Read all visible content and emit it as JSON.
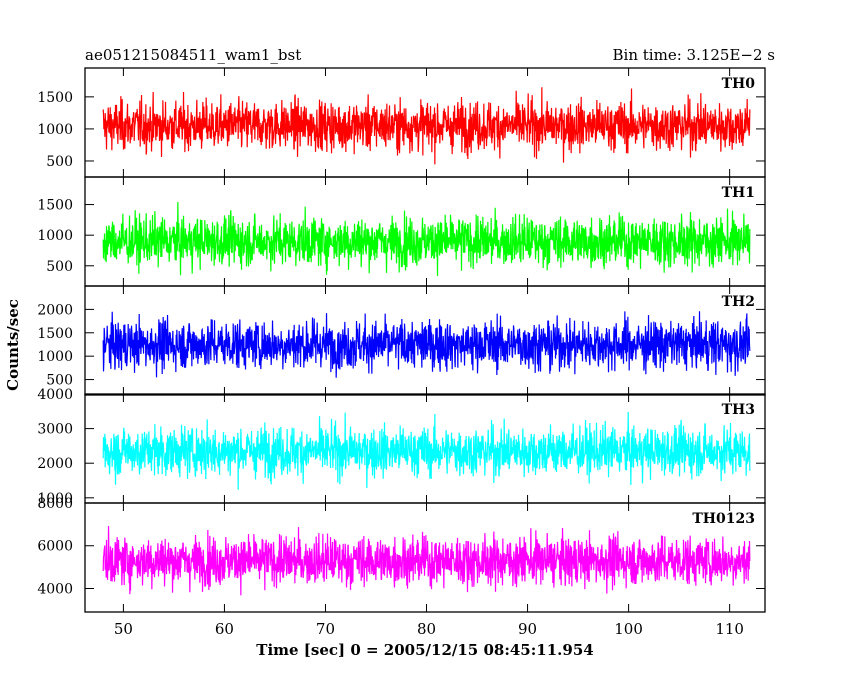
{
  "title_left": "ae051215084511_wam1_bst",
  "title_right": "Bin time: 3.125E−2 s",
  "chart_data": {
    "type": "line",
    "xlabel": "Time [sec] 0 = 2005/12/15 08:45:11.954",
    "ylabel": "Counts/sec",
    "xlim": [
      46.2,
      113.5
    ],
    "xticks": [
      50,
      60,
      70,
      80,
      90,
      100,
      110
    ],
    "xtick_labels": [
      "50",
      "60",
      "70",
      "80",
      "90",
      "100",
      "110"
    ],
    "x_range": [
      48.0,
      112.0
    ],
    "bin_time": 0.03125,
    "panels": [
      {
        "name": "TH0",
        "color": "#ff0000",
        "ylim": [
          250,
          1950
        ],
        "yticks": [
          500,
          1000,
          1500
        ],
        "ytick_labels": [
          "500",
          "1000",
          "1500"
        ],
        "data_min": 250,
        "data_max": 1950,
        "mean": 1050
      },
      {
        "name": "TH1",
        "color": "#00ff00",
        "ylim": [
          170,
          1950
        ],
        "yticks": [
          500,
          1000,
          1500
        ],
        "ytick_labels": [
          "500",
          "1000",
          "1500"
        ],
        "data_min": 170,
        "data_max": 1950,
        "mean": 900
      },
      {
        "name": "TH2",
        "color": "#0000ff",
        "ylim": [
          170,
          2500
        ],
        "yticks": [
          500,
          1000,
          1500,
          2000
        ],
        "ytick_labels": [
          "500",
          "1000",
          "1500",
          "2000"
        ],
        "data_min": 170,
        "data_max": 2500,
        "mean": 1250
      },
      {
        "name": "TH3",
        "color": "#00ffff",
        "ylim": [
          850,
          4000
        ],
        "yticks": [
          1000,
          2000,
          3000,
          4000
        ],
        "ytick_labels": [
          "1000",
          "2000",
          "3000",
          "4000"
        ],
        "data_min": 850,
        "data_max": 4000,
        "mean": 2350
      },
      {
        "name": "TH0123",
        "color": "#ff00ff",
        "ylim": [
          2900,
          8000
        ],
        "yticks": [
          4000,
          6000,
          8000
        ],
        "ytick_labels": [
          "4000",
          "6000",
          "8000"
        ],
        "data_min": 2900,
        "data_max": 8000,
        "mean": 5300
      }
    ]
  }
}
